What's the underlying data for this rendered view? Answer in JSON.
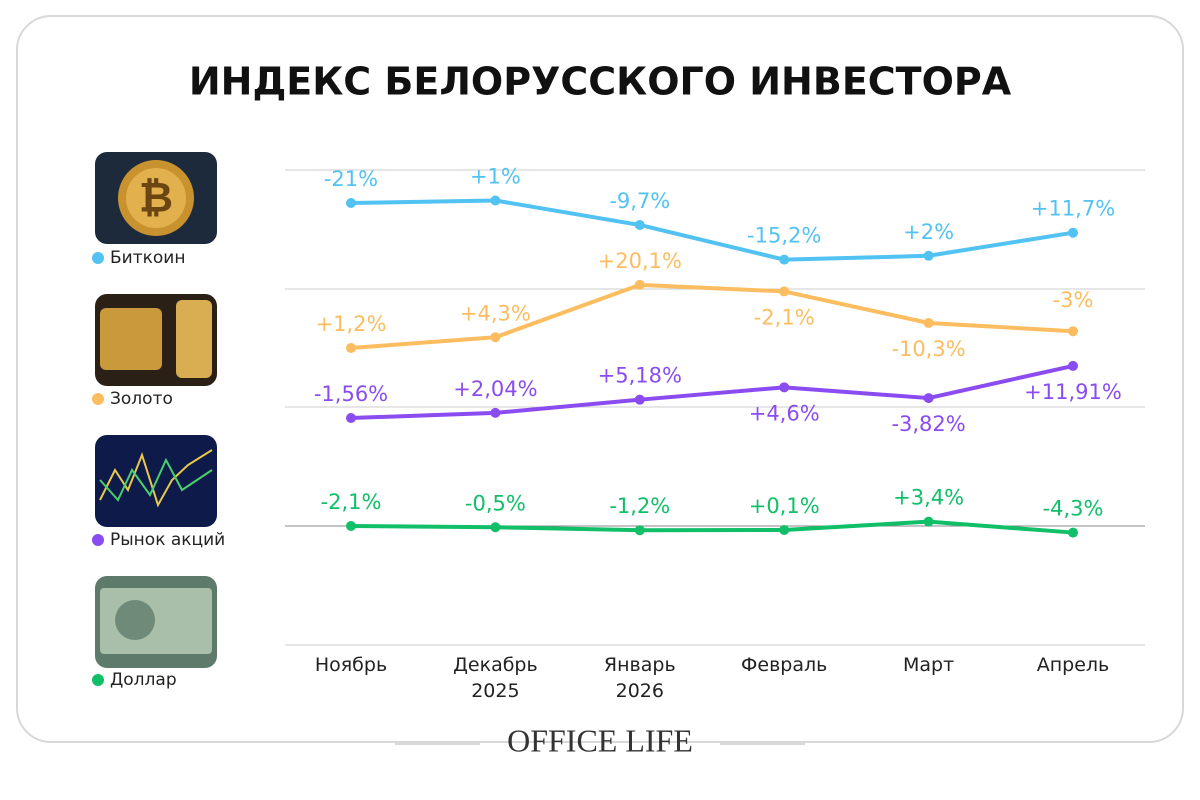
{
  "chart_data": {
    "type": "line",
    "title": "ИНДЕКС БЕЛОРУССКОГО ИНВЕСТОРА",
    "source": "OFFICE LIFE",
    "categories": [
      "Ноябрь",
      "Декабрь 2025",
      "Январь 2026",
      "Февраль",
      "Март",
      "Апрель"
    ],
    "series": [
      {
        "name": "Биткоин",
        "color": "#52c2f2",
        "values": [
          -21,
          1,
          -9.7,
          -15.2,
          2,
          11.7
        ],
        "value_labels": [
          "-21%",
          "+1%",
          "-9,7%",
          "-15,2%",
          "+2%",
          "+11,7%"
        ]
      },
      {
        "name": "Золото",
        "color": "#fbbd5f",
        "values": [
          1.2,
          4.3,
          20.1,
          -2.1,
          -10.3,
          -3
        ],
        "value_labels": [
          "+1,2%",
          "+4,3%",
          "+20,1%",
          "-2,1%",
          "-10,3%",
          "-3%"
        ]
      },
      {
        "name": "Рынок акций",
        "color": "#8a4cf0",
        "values": [
          -1.56,
          2.04,
          5.18,
          4.6,
          -3.82,
          11.91
        ],
        "value_labels": [
          "-1,56%",
          "+2,04%",
          "+5,18%",
          "+4,6%",
          "-3,82%",
          "+11,91%"
        ]
      },
      {
        "name": "Доллар",
        "color": "#10bf68",
        "values": [
          -2.1,
          -0.5,
          -1.2,
          0.1,
          3.4,
          -4.3
        ],
        "value_labels": [
          "-2,1%",
          "-0,5%",
          "-1,2%",
          "+0,1%",
          "+3,4%",
          "-4,3%"
        ]
      }
    ]
  }
}
